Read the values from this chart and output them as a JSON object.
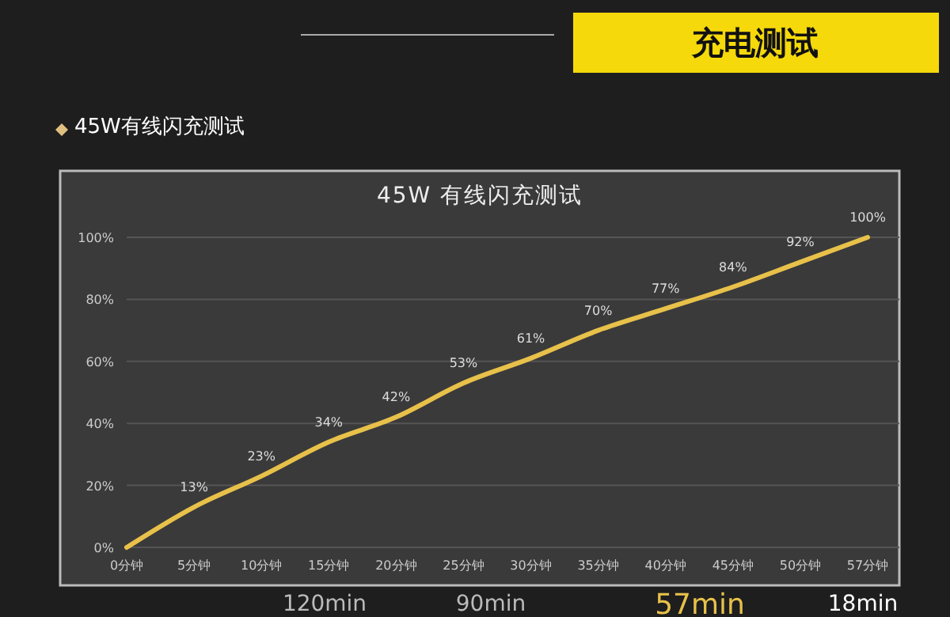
{
  "chart_data": {
    "type": "line",
    "title": "45W 有线闪充测试",
    "annotations": [
      "充电测试",
      "45W有线闪充测试",
      "120min",
      "90min",
      "57min",
      "18min"
    ],
    "categories": [
      "0分钟",
      "5分钟",
      "10分钟",
      "15分钟",
      "20分钟",
      "25分钟",
      "30分钟",
      "35分钟",
      "40分钟",
      "45分钟",
      "50分钟",
      "57分钟"
    ],
    "series": [
      {
        "color": "#e8c14a",
        "values": [
          0,
          13,
          23,
          34,
          42,
          53,
          61,
          70,
          77,
          84,
          92,
          100
        ],
        "value_labels": [
          null,
          "13%",
          "23%",
          "34%",
          "42%",
          "53%",
          "61%",
          "70%",
          "77%",
          "84%",
          "92%",
          "100%"
        ]
      }
    ],
    "ylim": [
      0,
      100
    ],
    "yticks": [
      {
        "value": 0,
        "label": "0%"
      },
      {
        "value": 20,
        "label": "20%"
      },
      {
        "value": 40,
        "label": "40%"
      },
      {
        "value": 60,
        "label": "60%"
      },
      {
        "value": 80,
        "label": "80%"
      },
      {
        "value": 100,
        "label": "100%"
      }
    ],
    "grid": "y",
    "marker": "none",
    "line_style": "solid"
  }
}
